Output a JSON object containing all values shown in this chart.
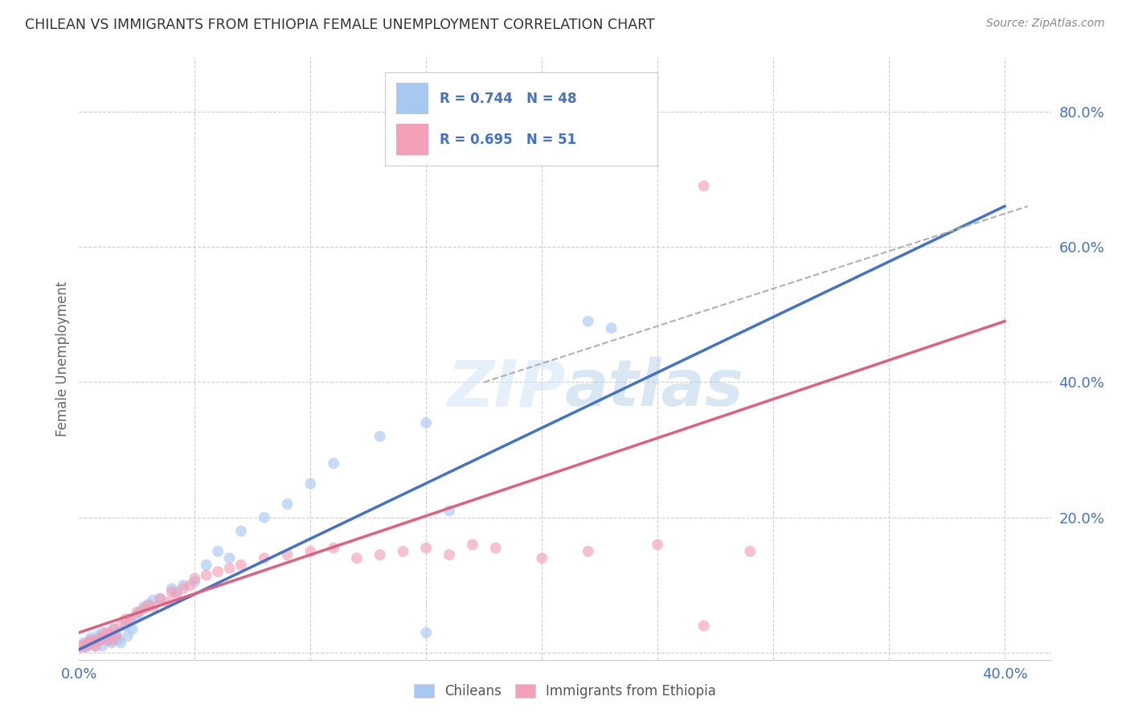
{
  "title": "CHILEAN VS IMMIGRANTS FROM ETHIOPIA FEMALE UNEMPLOYMENT CORRELATION CHART",
  "source": "Source: ZipAtlas.com",
  "ylabel": "Female Unemployment",
  "xlim": [
    0.0,
    0.42
  ],
  "ylim": [
    -0.01,
    0.88
  ],
  "yticks": [
    0.0,
    0.2,
    0.4,
    0.6,
    0.8
  ],
  "ytick_labels": [
    "",
    "20.0%",
    "40.0%",
    "60.0%",
    "80.0%"
  ],
  "xticks": [
    0.0,
    0.05,
    0.1,
    0.15,
    0.2,
    0.25,
    0.3,
    0.35,
    0.4
  ],
  "background_color": "#ffffff",
  "grid_color": "#d0d0d0",
  "title_color": "#333333",
  "axis_tick_color": "#4472c4",
  "chileans_color": "#a8c8f0",
  "ethiopia_color": "#f4a0b8",
  "chileans_line_color": "#4472c4",
  "ethiopia_line_color": "#e06080",
  "dashed_color": "#b0b0b0",
  "R_chileans": 0.744,
  "N_chileans": 48,
  "R_ethiopia": 0.695,
  "N_ethiopia": 51,
  "chileans_scatter_x": [
    0.001,
    0.002,
    0.003,
    0.004,
    0.005,
    0.005,
    0.006,
    0.007,
    0.008,
    0.009,
    0.01,
    0.01,
    0.011,
    0.012,
    0.013,
    0.014,
    0.015,
    0.016,
    0.017,
    0.018,
    0.02,
    0.021,
    0.022,
    0.023,
    0.025,
    0.026,
    0.028,
    0.03,
    0.032,
    0.035,
    0.04,
    0.042,
    0.045,
    0.05,
    0.055,
    0.06,
    0.065,
    0.07,
    0.08,
    0.09,
    0.1,
    0.11,
    0.13,
    0.15,
    0.16,
    0.22,
    0.15,
    0.23
  ],
  "chileans_scatter_y": [
    0.01,
    0.015,
    0.008,
    0.012,
    0.018,
    0.022,
    0.015,
    0.01,
    0.025,
    0.02,
    0.03,
    0.01,
    0.025,
    0.018,
    0.022,
    0.015,
    0.035,
    0.028,
    0.02,
    0.015,
    0.04,
    0.025,
    0.05,
    0.035,
    0.055,
    0.06,
    0.068,
    0.072,
    0.078,
    0.08,
    0.095,
    0.09,
    0.1,
    0.105,
    0.13,
    0.15,
    0.14,
    0.18,
    0.2,
    0.22,
    0.25,
    0.28,
    0.32,
    0.34,
    0.21,
    0.49,
    0.03,
    0.48
  ],
  "ethiopia_scatter_x": [
    0.001,
    0.002,
    0.003,
    0.004,
    0.005,
    0.006,
    0.007,
    0.008,
    0.009,
    0.01,
    0.011,
    0.012,
    0.013,
    0.014,
    0.015,
    0.016,
    0.018,
    0.02,
    0.022,
    0.025,
    0.028,
    0.03,
    0.032,
    0.035,
    0.038,
    0.04,
    0.042,
    0.045,
    0.048,
    0.05,
    0.055,
    0.06,
    0.065,
    0.07,
    0.08,
    0.09,
    0.1,
    0.11,
    0.12,
    0.13,
    0.14,
    0.15,
    0.16,
    0.17,
    0.18,
    0.2,
    0.22,
    0.25,
    0.27,
    0.29,
    0.27
  ],
  "ethiopia_scatter_y": [
    0.008,
    0.012,
    0.01,
    0.015,
    0.018,
    0.014,
    0.01,
    0.02,
    0.018,
    0.025,
    0.022,
    0.03,
    0.028,
    0.018,
    0.035,
    0.025,
    0.04,
    0.05,
    0.048,
    0.06,
    0.065,
    0.07,
    0.068,
    0.08,
    0.075,
    0.09,
    0.085,
    0.095,
    0.1,
    0.11,
    0.115,
    0.12,
    0.125,
    0.13,
    0.14,
    0.145,
    0.15,
    0.155,
    0.14,
    0.145,
    0.15,
    0.155,
    0.145,
    0.16,
    0.155,
    0.14,
    0.15,
    0.16,
    0.04,
    0.15,
    0.69
  ],
  "chileans_line_x": [
    0.0,
    0.4
  ],
  "chileans_line_y": [
    0.005,
    0.66
  ],
  "ethiopia_line_x": [
    0.0,
    0.4
  ],
  "ethiopia_line_y": [
    0.03,
    0.49
  ],
  "dashed_line_x": [
    0.175,
    0.41
  ],
  "dashed_line_y": [
    0.4,
    0.66
  ],
  "marker_size": 100,
  "marker_alpha": 0.65
}
